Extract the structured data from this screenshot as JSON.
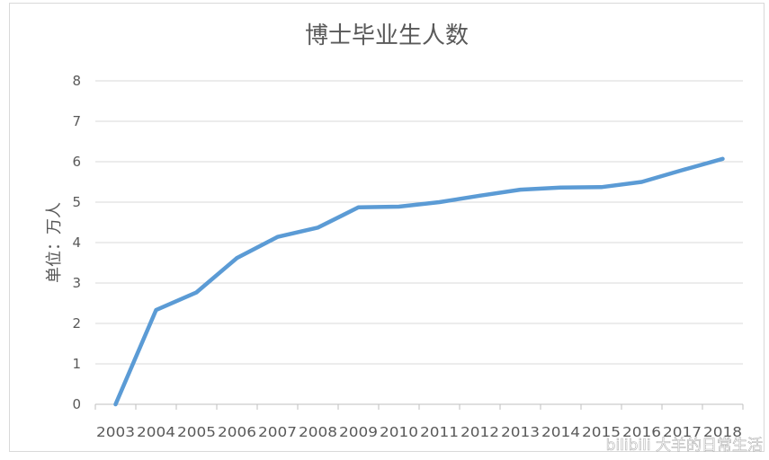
{
  "chart_data": {
    "type": "line",
    "title": "博士毕业生人数",
    "xlabel": "",
    "ylabel": "单位：万人",
    "categories": [
      "2003",
      "2004",
      "2005",
      "2006",
      "2007",
      "2008",
      "2009",
      "2010",
      "2011",
      "2012",
      "2013",
      "2014",
      "2015",
      "2016",
      "2017",
      "2018"
    ],
    "series": [
      {
        "values": [
          0,
          2.33,
          2.77,
          3.62,
          4.14,
          4.37,
          4.87,
          4.89,
          5.0,
          5.16,
          5.31,
          5.36,
          5.37,
          5.5,
          5.79,
          6.07
        ],
        "color": "#5b9bd5"
      }
    ],
    "ylim": [
      0,
      8
    ],
    "yticks": [
      "0",
      "1",
      "2",
      "3",
      "4",
      "5",
      "6",
      "7",
      "8"
    ],
    "grid": true,
    "legend": "none"
  },
  "watermark": "bilibili 大羊的日常生活"
}
